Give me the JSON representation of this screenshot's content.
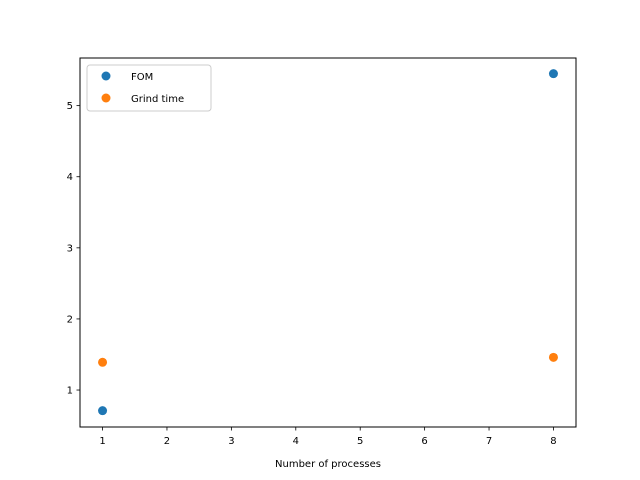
{
  "chart_data": {
    "type": "scatter",
    "title": "",
    "xlabel": "Number of processes",
    "ylabel": "",
    "xlim": [
      0.65,
      8.35
    ],
    "ylim": [
      0.48,
      5.67
    ],
    "xticks": [
      1,
      2,
      3,
      4,
      5,
      6,
      7,
      8
    ],
    "yticks": [
      1,
      2,
      3,
      4,
      5
    ],
    "grid": false,
    "legend_position": "top-left",
    "series": [
      {
        "name": "FOM",
        "color": "#1f77b4",
        "x": [
          1,
          8
        ],
        "y": [
          0.71,
          5.45
        ]
      },
      {
        "name": "Grind time",
        "color": "#ff7f0e",
        "x": [
          1,
          8
        ],
        "y": [
          1.39,
          1.46
        ]
      }
    ]
  }
}
